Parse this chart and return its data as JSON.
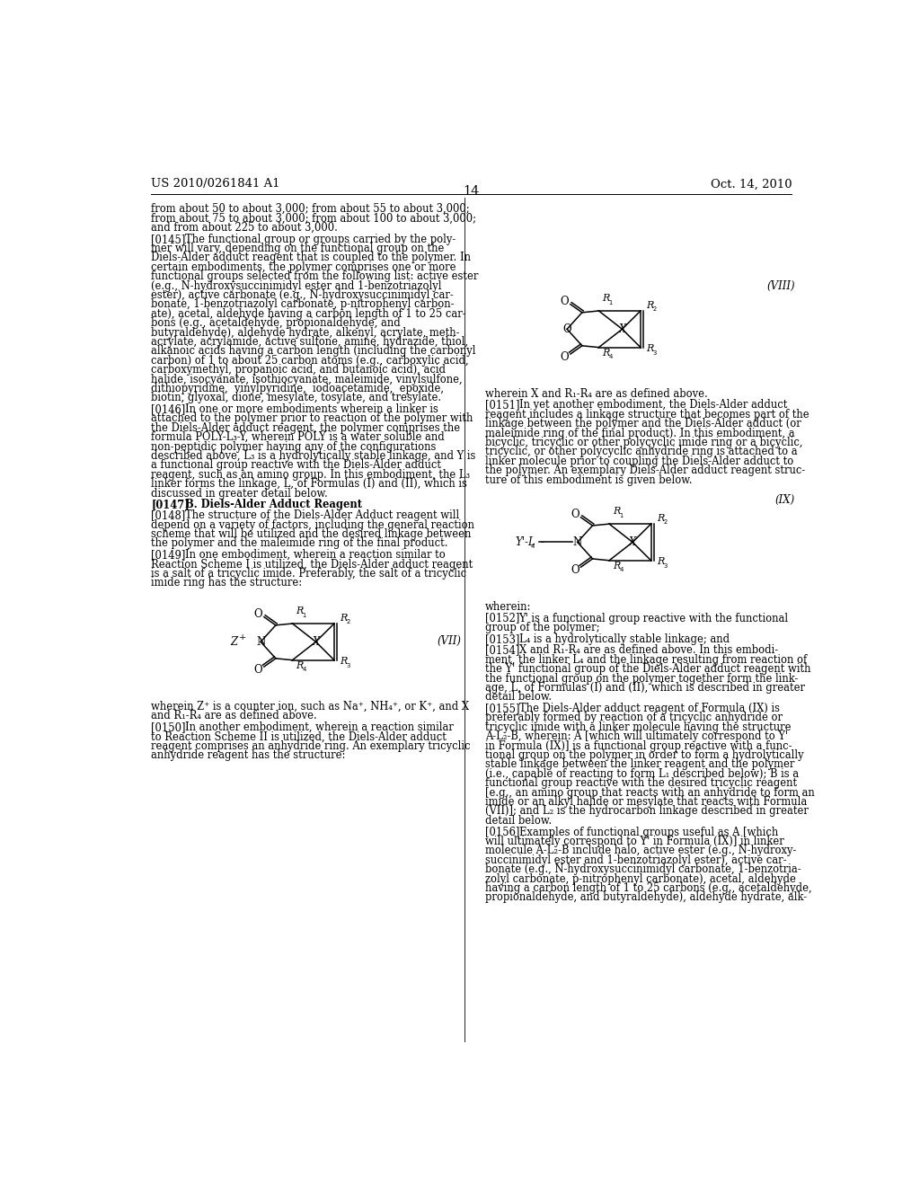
{
  "page_header_left": "US 2010/0261841 A1",
  "page_header_right": "Oct. 14, 2010",
  "page_number": "14",
  "background_color": "#ffffff",
  "left_paragraphs": [
    {
      "tag": "",
      "lines": [
        "from about 50 to about 3,000; from about 55 to about 3,000;",
        "from about 75 to about 3,000; from about 100 to about 3,000;",
        "and from about 225 to about 3,000."
      ]
    },
    {
      "tag": "[0145]",
      "lines": [
        "The functional group or groups carried by the poly-",
        "mer will vary, depending on the functional group on the",
        "Diels-Alder adduct reagent that is coupled to the polymer. In",
        "certain embodiments, the polymer comprises one or more",
        "functional groups selected from the following list: active ester",
        "(e.g., N-hydroxysuccinimidyl ester and 1-benzotriazolyl",
        "ester), active carbonate (e.g., N-hydroxysuccinimidyl car-",
        "bonate, 1-benzotriazolyl carbonate, p-nitrophenyl carbon-",
        "ate), acetal, aldehyde having a carbon length of 1 to 25 car-",
        "bons (e.g., acetaldehyde, propionaldehyde, and",
        "butyraldehyde), aldehyde hydrate, alkenyl, acrylate, meth-",
        "acrylate, acrylamide, active sulfone, amine, hydrazide, thiol,",
        "alkanoic acids having a carbon length (including the carbonyl",
        "carbon) of 1 to about 25 carbon atoms (e.g., carboxylic acid,",
        "carboxymethyl, propanoic acid, and butanoic acid), acid",
        "halide, isocyanate, isothiocyanate, maleimide, vinylsulfone,",
        "dithiopyridine,  vinylpyridine,  iodoacetamide,  epoxide,",
        "biotin, glyoxal, dione, mesylate, tosylate, and tresylate."
      ]
    },
    {
      "tag": "[0146]",
      "lines": [
        "In one or more embodiments wherein a linker is",
        "attached to the polymer prior to reaction of the polymer with",
        "the Diels-Alder adduct reagent, the polymer comprises the",
        "formula POLY-L₃-Y, wherein POLY is a water soluble and",
        "non-peptidic polymer having any of the configurations",
        "described above, L₃ is a hydrolytically stable linkage, and Y is",
        "a functional group reactive with the Diels-Alder adduct",
        "reagent, such as an amino group. In this embodiment, the L₃",
        "linker forms the linkage, L, of Formulas (I) and (II), which is",
        "discussed in greater detail below."
      ]
    },
    {
      "tag": "[0147]",
      "bold": true,
      "lines": [
        "B. Diels-Alder Adduct Reagent"
      ]
    },
    {
      "tag": "[0148]",
      "lines": [
        "The structure of the Diels-Alder Adduct reagent will",
        "depend on a variety of factors, including the general reaction",
        "scheme that will be utilized and the desired linkage between",
        "the polymer and the maleimide ring of the final product."
      ]
    },
    {
      "tag": "[0149]",
      "lines": [
        "In one embodiment, wherein a reaction similar to",
        "Reaction Scheme I is utilized, the Diels-Alder adduct reagent",
        "is a salt of a tricyclic imide. Preferably, the salt of a tricyclic",
        "imide ring has the structure:"
      ]
    }
  ],
  "left_below_struct": [
    "wherein Z⁺ is a counter ion, such as Na⁺, NH₄⁺, or K⁺, and X",
    "and R₁-R₄ are as defined above."
  ],
  "para_0150": {
    "tag": "[0150]",
    "lines": [
      "In another embodiment, wherein a reaction similar",
      "to Reaction Scheme II is utilized, the Diels-Alder adduct",
      "reagent comprises an anhydride ring. An exemplary tricyclic",
      "anhydride reagent has the structure:"
    ]
  },
  "right_above_struct8": [
    "wherein X and R₁-R₄ are as defined above."
  ],
  "para_0151": {
    "tag": "[0151]",
    "lines": [
      "In yet another embodiment, the Diels-Alder adduct",
      "reagent includes a linkage structure that becomes part of the",
      "linkage between the polymer and the Diels-Alder adduct (or",
      "maleimide ring of the final product). In this embodiment, a",
      "bicyclic, tricyclic or other polycyclic imide ring or a bicyclic,",
      "tricyclic, or other polycyclic anhydride ring is attached to a",
      "linker molecule prior to coupling the Diels-Alder adduct to",
      "the polymer. An exemplary Diels-Alder adduct reagent struc-",
      "ture of this embodiment is given below."
    ]
  },
  "right_below_struct9": [
    "wherein:"
  ],
  "para_0152": {
    "tag": "[0152]",
    "lines": [
      "Y' is a functional group reactive with the functional",
      "group of the polymer;"
    ]
  },
  "para_0153": {
    "tag": "[0153]",
    "lines": [
      "L₄ is a hydrolytically stable linkage; and"
    ]
  },
  "para_0154": {
    "tag": "[0154]",
    "lines": [
      "X and R₁-R₄ are as defined above. In this embodi-",
      "ment, the linker L₄ and the linkage resulting from reaction of",
      "the Y' functional group of the Diels-Alder adduct reagent with",
      "the functional group on the polymer together form the link-",
      "age, L, of Formulas (I) and (II), which is described in greater",
      "detail below."
    ]
  },
  "para_0155": {
    "tag": "[0155]",
    "lines": [
      "The Diels-Alder adduct reagent of Formula (IX) is",
      "preferably formed by reaction of a tricyclic anhydride or",
      "tricyclic imide with a linker molecule having the structure",
      "A-L₂-B, wherein: A [which will ultimately correspond to Y'",
      "in Formula (IX)] is a functional group reactive with a func-",
      "tional group on the polymer in order to form a hydrolytically",
      "stable linkage between the linker reagent and the polymer",
      "(i.e., capable of reacting to form L₁ described below); B is a",
      "functional group reactive with the desired tricyclic reagent",
      "[e.g., an amino group that reacts with an anhydride to form an",
      "imide or an alkyl halide or mesylate that reacts with Formula",
      "(VII)]; and L₂ is the hydrocarbon linkage described in greater",
      "detail below."
    ]
  },
  "para_0156": {
    "tag": "[0156]",
    "lines": [
      "Examples of functional groups useful as A [which",
      "will ultimately correspond to Y' in Formula (IX)] in linker",
      "molecule A-L₂-B include halo, active ester (e.g., N-hydroxy-",
      "succinimidyl ester and 1-benzotriazolyl ester), active car-",
      "bonate (e.g., N-hydroxysuccinimidyl carbonate, 1-benzotria-",
      "zolyl carbonate, p-nitrophenyl carbonate), acetal, aldehyde",
      "having a carbon length of 1 to 25 carbons (e.g., acetaldehyde,",
      "propionaldehyde, and butyraldehyde), aldehyde hydrate, alk-"
    ]
  }
}
